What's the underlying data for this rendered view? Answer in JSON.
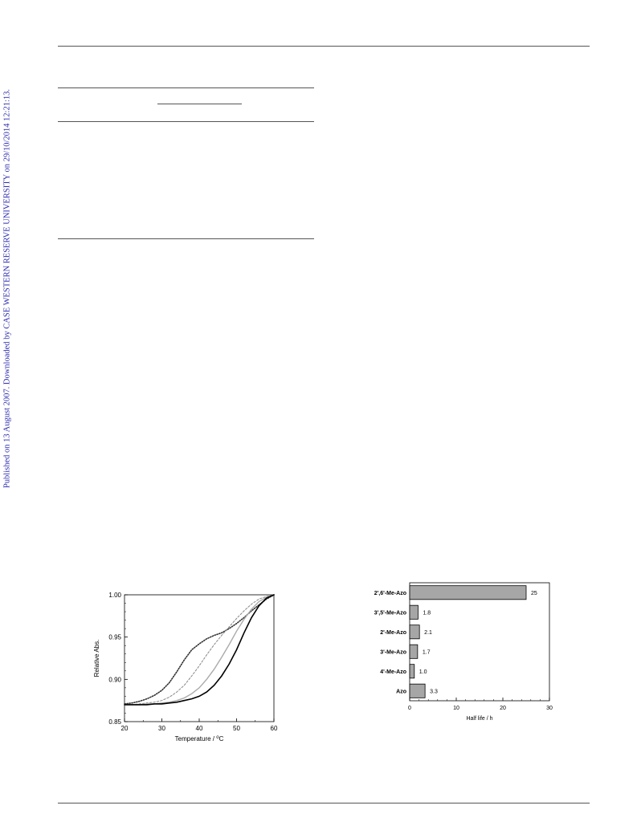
{
  "side_note": "Published on 13 August 2007. Downloaded by CASE WESTERN RESERVE UNIVERSITY on 29/10/2014 12:21:13.",
  "chart_data": [
    {
      "type": "line",
      "xlabel": "Temperature / °C",
      "ylabel": "Relative Abs.",
      "xlim": [
        20,
        60
      ],
      "ylim": [
        0.85,
        1.0
      ],
      "xticks": [
        "20",
        "30",
        "40",
        "50",
        "60"
      ],
      "yticks": [
        "0.85",
        "0.90",
        "0.95",
        "1.00"
      ],
      "grid": false,
      "series": [
        {
          "style": "dotted-dark",
          "color": "#333333",
          "x": [
            20,
            22,
            24,
            26,
            28,
            30,
            32,
            34,
            36,
            38,
            40,
            42,
            44,
            46,
            48,
            50,
            52,
            54,
            56,
            58,
            60
          ],
          "y": [
            0.871,
            0.872,
            0.874,
            0.877,
            0.881,
            0.887,
            0.896,
            0.909,
            0.923,
            0.935,
            0.942,
            0.948,
            0.952,
            0.955,
            0.96,
            0.966,
            0.973,
            0.981,
            0.988,
            0.995,
            1.0
          ]
        },
        {
          "style": "dashed-gray",
          "color": "#888888",
          "x": [
            20,
            22,
            24,
            26,
            28,
            30,
            32,
            34,
            36,
            38,
            40,
            42,
            44,
            46,
            48,
            50,
            52,
            54,
            56,
            58,
            60
          ],
          "y": [
            0.87,
            0.87,
            0.871,
            0.872,
            0.873,
            0.875,
            0.879,
            0.885,
            0.893,
            0.904,
            0.916,
            0.929,
            0.941,
            0.952,
            0.962,
            0.972,
            0.981,
            0.989,
            0.995,
            0.998,
            1.0
          ]
        },
        {
          "style": "solid-lightgray",
          "color": "#aaaaaa",
          "x": [
            20,
            22,
            24,
            26,
            28,
            30,
            32,
            34,
            36,
            38,
            40,
            42,
            44,
            46,
            48,
            50,
            52,
            54,
            56,
            58,
            60
          ],
          "y": [
            0.87,
            0.87,
            0.87,
            0.871,
            0.871,
            0.872,
            0.873,
            0.875,
            0.878,
            0.883,
            0.89,
            0.9,
            0.912,
            0.926,
            0.941,
            0.957,
            0.971,
            0.983,
            0.992,
            0.997,
            1.0
          ]
        },
        {
          "style": "solid-black",
          "color": "#000000",
          "x": [
            20,
            22,
            24,
            26,
            28,
            30,
            32,
            34,
            36,
            38,
            40,
            42,
            44,
            46,
            48,
            50,
            52,
            54,
            56,
            58,
            60
          ],
          "y": [
            0.87,
            0.87,
            0.87,
            0.87,
            0.871,
            0.871,
            0.872,
            0.873,
            0.875,
            0.877,
            0.88,
            0.885,
            0.893,
            0.904,
            0.918,
            0.935,
            0.955,
            0.973,
            0.987,
            0.996,
            1.0
          ]
        }
      ]
    },
    {
      "type": "bar",
      "orientation": "horizontal",
      "xlabel": "Half life / h",
      "xlim": [
        0,
        30
      ],
      "xticks": [
        "0",
        "10",
        "20",
        "30"
      ],
      "categories": [
        "2',6'-Me-Azo",
        "3',5'-Me-Azo",
        "2'-Me-Azo",
        "3'-Me-Azo",
        "4'-Me-Azo",
        "Azo"
      ],
      "values": [
        25,
        1.8,
        2.1,
        1.7,
        1.0,
        3.3
      ],
      "value_labels": [
        "25",
        "1.8",
        "2.1",
        "1.7",
        "1.0",
        "3.3"
      ],
      "bar_color": "#a6a6a6"
    }
  ]
}
